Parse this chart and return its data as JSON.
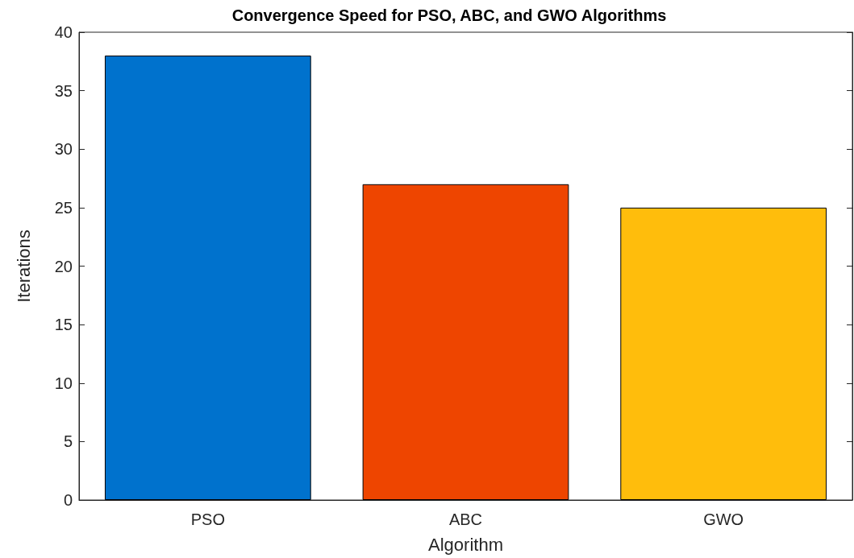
{
  "chart_data": {
    "type": "bar",
    "title": "Convergence Speed for PSO, ABC, and GWO Algorithms",
    "xlabel": "Algorithm",
    "ylabel": "Iterations",
    "categories": [
      "PSO",
      "ABC",
      "GWO"
    ],
    "values": [
      38,
      27,
      25
    ],
    "colors": [
      "#0072cd",
      "#ee4500",
      "#ffbd0c"
    ],
    "ylim": [
      0,
      40
    ],
    "yticks": [
      0,
      5,
      10,
      15,
      20,
      25,
      30,
      35,
      40
    ],
    "grid": false
  }
}
